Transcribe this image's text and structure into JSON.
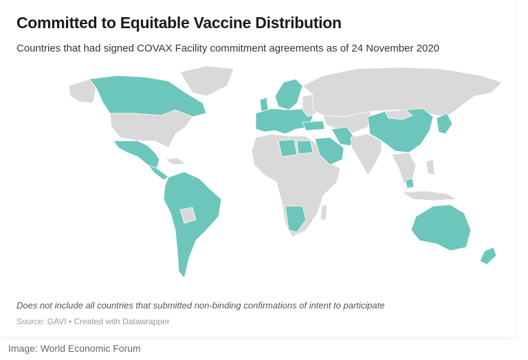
{
  "header": {
    "title": "Committed to Equitable Vaccine Distribution",
    "subtitle": "Countries that had signed COVAX Facility commitment agreements as of 24 November 2020"
  },
  "footer": {
    "note": "Does not include all countries that submitted non-binding confirmations of intent to participate",
    "source": "Source: GAVI • Created with Datawrapper",
    "credit": "Image: World Economic Forum"
  },
  "colors": {
    "signed": "#6cc6bb",
    "not_signed": "#d9d9d9"
  }
}
